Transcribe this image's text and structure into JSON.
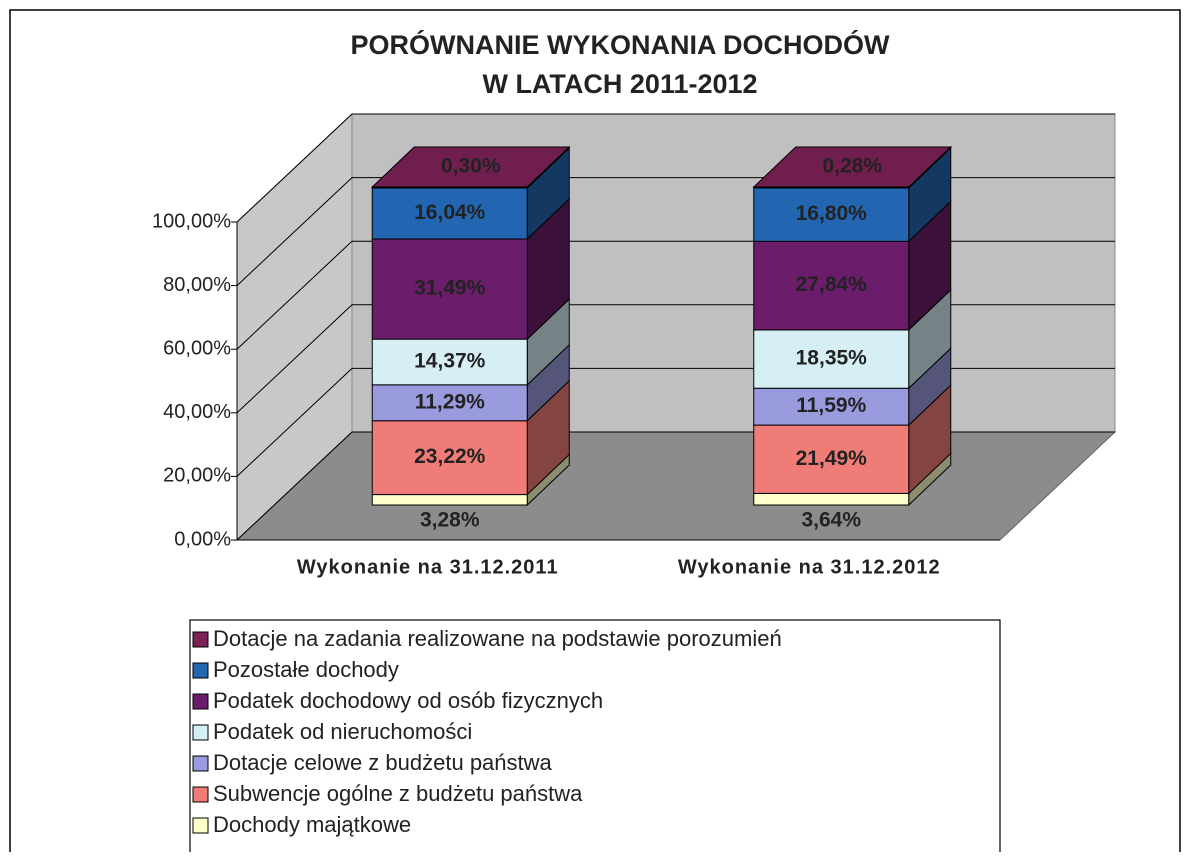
{
  "chart_data": {
    "type": "bar3d_stacked",
    "title": [
      "PORÓWNANIE WYKONANIA DOCHODÓW",
      "W LATACH 2011-2012"
    ],
    "categories": [
      "Wykonanie na 31.12.2011",
      "Wykonanie na 31.12.2012"
    ],
    "series": [
      {
        "name": "Dochody majątkowe",
        "color": "#ffffcc",
        "values": [
          3.28,
          3.64
        ],
        "value_labels": [
          "3,28%",
          "3,64%"
        ]
      },
      {
        "name": "Subwencje ogólne z budżetu państwa",
        "color": "#f07c78",
        "values": [
          23.22,
          21.49
        ],
        "value_labels": [
          "23,22%",
          "21,49%"
        ]
      },
      {
        "name": "Dotacje celowe z budżetu państwa",
        "color": "#9a9ade",
        "values": [
          11.29,
          11.59
        ],
        "value_labels": [
          "11,29%",
          "11,59%"
        ]
      },
      {
        "name": "Podatek od nieruchomości",
        "color": "#d6eff4",
        "values": [
          14.37,
          18.35
        ],
        "value_labels": [
          "14,37%",
          "18,35%"
        ]
      },
      {
        "name": "Podatek dochodowy od osób fizycznych",
        "color": "#6b1d6b",
        "values": [
          31.49,
          27.84
        ],
        "value_labels": [
          "31,49%",
          "27,84%"
        ]
      },
      {
        "name": "Pozostałe dochody",
        "color": "#2265b0",
        "values": [
          16.04,
          16.8
        ],
        "value_labels": [
          "16,04%",
          "16,80%"
        ]
      },
      {
        "name": "Dotacje na zadania realizowane na podstawie porozumień",
        "color": "#7b2156",
        "values": [
          0.3,
          0.28
        ],
        "value_labels": [
          "0,30%",
          "0,28%"
        ]
      }
    ],
    "ylim": [
      0,
      100
    ],
    "yticks": [
      {
        "value": 0,
        "label": "0,00%"
      },
      {
        "value": 20,
        "label": "20,00%"
      },
      {
        "value": 40,
        "label": "40,00%"
      },
      {
        "value": 60,
        "label": "60,00%"
      },
      {
        "value": 80,
        "label": "80,00%"
      },
      {
        "value": 100,
        "label": "100,00%"
      }
    ],
    "grid": true
  }
}
